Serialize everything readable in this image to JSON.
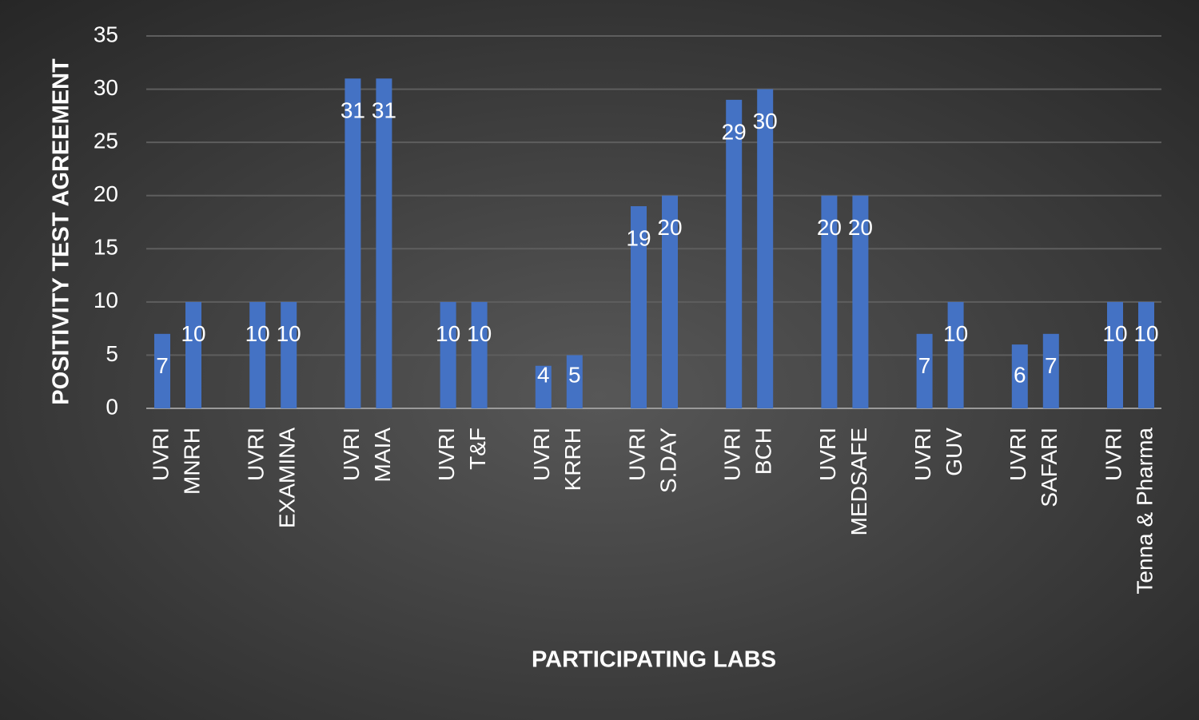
{
  "chart_data": {
    "type": "bar",
    "x_label": "PARTICIPATING LABS",
    "y_label": "POSITIVITY TEST AGREEMENT",
    "categories": [
      "UVRI",
      "MNRH",
      "UVRI",
      "EXAMINA",
      "UVRI",
      "MAIA",
      "UVRI",
      "T&F",
      "UVRI",
      "KRRH",
      "UVRI",
      "S.DAY",
      "UVRI",
      "BCH",
      "UVRI",
      "MEDSAFE",
      "UVRI",
      "GUV",
      "UVRI",
      "SAFARI",
      "UVRI",
      "Tenna & Pharma"
    ],
    "values": [
      7,
      10,
      10,
      10,
      31,
      31,
      10,
      10,
      4,
      5,
      19,
      20,
      29,
      30,
      20,
      20,
      7,
      10,
      6,
      7,
      10,
      10
    ],
    "color": "#4472c4",
    "ylim": [
      0,
      35
    ],
    "yticks": [
      0,
      5,
      10,
      15,
      20,
      25,
      30,
      35
    ],
    "grid": true
  }
}
